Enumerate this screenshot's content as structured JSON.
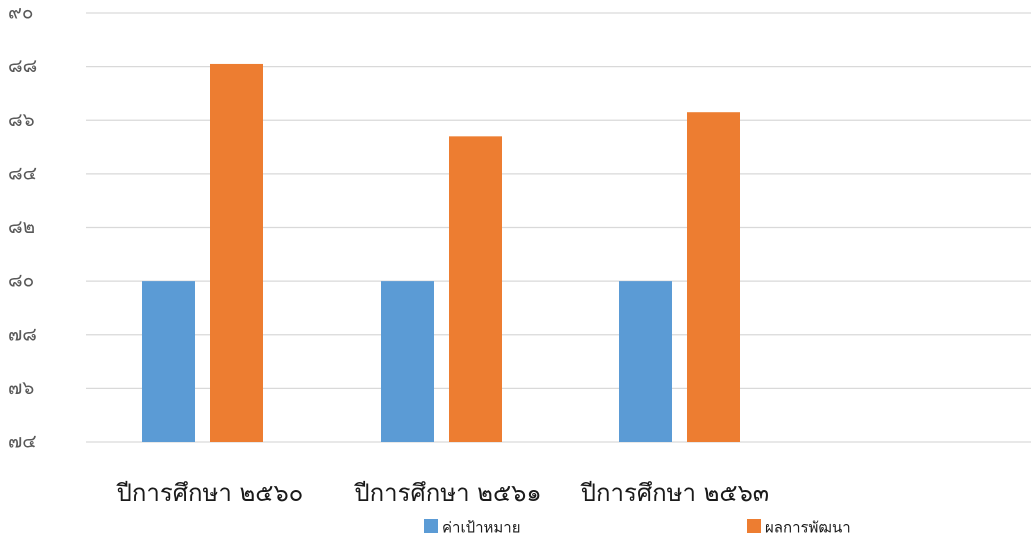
{
  "chart_data": {
    "type": "bar",
    "title": "",
    "xlabel": "",
    "ylabel": "",
    "categories": [
      "ปีการศึกษา ๒๕๖๐",
      "ปีการศึกษา ๒๕๖๑",
      "ปีการศึกษา ๒๕๖๓"
    ],
    "series": [
      {
        "name": "ค่าเป้าหมาย",
        "color": "#5B9BD5",
        "values": [
          80,
          80,
          80
        ]
      },
      {
        "name": "ผลการพัฒนา",
        "color": "#ED7D31",
        "values": [
          88.1,
          85.4,
          86.3
        ]
      }
    ],
    "ylim": [
      74,
      90
    ],
    "yticks": [
      74,
      76,
      78,
      80,
      82,
      84,
      86,
      88,
      90
    ],
    "ytick_labels": [
      "๗๔",
      "๗๖",
      "๗๘",
      "๘๐",
      "๘๒",
      "๘๔",
      "๘๖",
      "๘๘",
      "๙๐"
    ],
    "grid": true,
    "legend_position": "bottom"
  }
}
